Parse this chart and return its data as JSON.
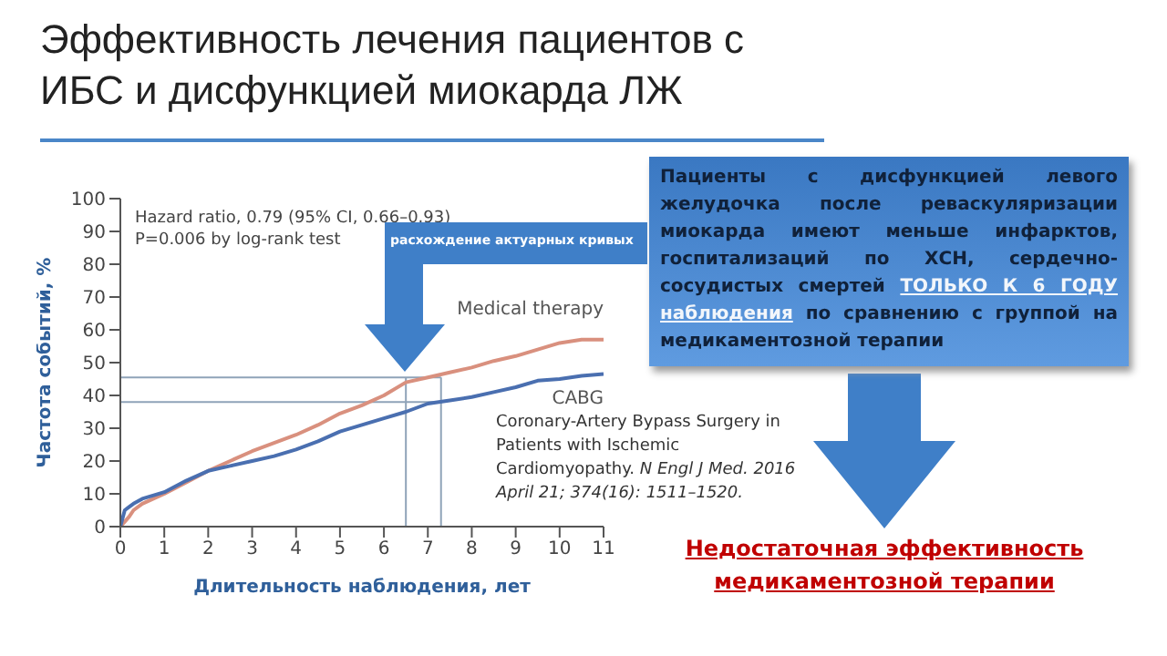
{
  "chart_data": {
    "type": "line",
    "title": "Эффективность лечения пациентов с ИБС и дисфункцией миокарда ЛЖ",
    "xlabel": "Длительность наблюдения, лет",
    "ylabel": "Частота событий, %",
    "x": [
      0,
      0.1,
      0.2,
      0.3,
      0.5,
      1,
      1.5,
      2,
      2.5,
      3,
      3.5,
      4,
      4.5,
      5,
      5.5,
      6,
      6.5,
      7,
      7.5,
      8,
      8.5,
      9,
      9.5,
      10,
      10.5,
      11
    ],
    "series": [
      {
        "name": "Medical therapy",
        "color": "#d9907e",
        "values": [
          0,
          1.5,
          3,
          5,
          7,
          10,
          13.5,
          17,
          20,
          23,
          25.5,
          28,
          31,
          34.5,
          37,
          40,
          44,
          45.5,
          47,
          48.5,
          50.5,
          52,
          54,
          56,
          57,
          57
        ]
      },
      {
        "name": "CABG",
        "color": "#4a6fb0",
        "values": [
          0,
          5,
          6,
          7,
          8.5,
          10.5,
          14,
          17,
          18.5,
          20,
          21.5,
          23.5,
          26,
          29,
          31,
          33,
          35,
          37.5,
          38.5,
          39.5,
          41,
          42.5,
          44.5,
          45,
          46,
          46.5
        ]
      }
    ],
    "xlim": [
      0,
      11
    ],
    "xticks": [
      0,
      1,
      2,
      3,
      4,
      5,
      6,
      7,
      8,
      9,
      10,
      11
    ],
    "ylim": [
      0,
      100
    ],
    "yticks": [
      0,
      10,
      20,
      30,
      40,
      50,
      60,
      70,
      80,
      90,
      100
    ],
    "grid": false,
    "legend": false,
    "marker": "none",
    "line_style": "solid",
    "ref_lines": [
      {
        "axis": "y",
        "value": 45.5,
        "color": "#8fa3b8"
      },
      {
        "axis": "y",
        "value": 38,
        "color": "#8fa3b8"
      },
      {
        "axis": "x",
        "value": 6.5,
        "color": "#8fa3b8"
      },
      {
        "axis": "x",
        "value": 7.3,
        "color": "#8fa3b8"
      }
    ],
    "annotations": [
      "Hazard ratio, 0.79 (95% CI, 0.66–0.93)",
      "P=0.006 by log-rank test",
      "расхождение актуарных кривых",
      "Пациенты с дисфункцией левого желудочка после реваскуляризации миокарда имеют меньше инфарктов, госпитализаций по ХСН, сердечно-сосудистых смертей",
      "ТОЛЬКО К 6 ГОДУ наблюдения",
      "по сравнению с группой на медикаментозной терапии",
      "Coronary-Artery Bypass Surgery in Patients with Ischemic Cardiomyopathy.",
      "N Engl J Med. 2016 April 21; 374(16): 1511–1520.",
      "Недостаточная эффективность медикаментозной терапии"
    ]
  }
}
